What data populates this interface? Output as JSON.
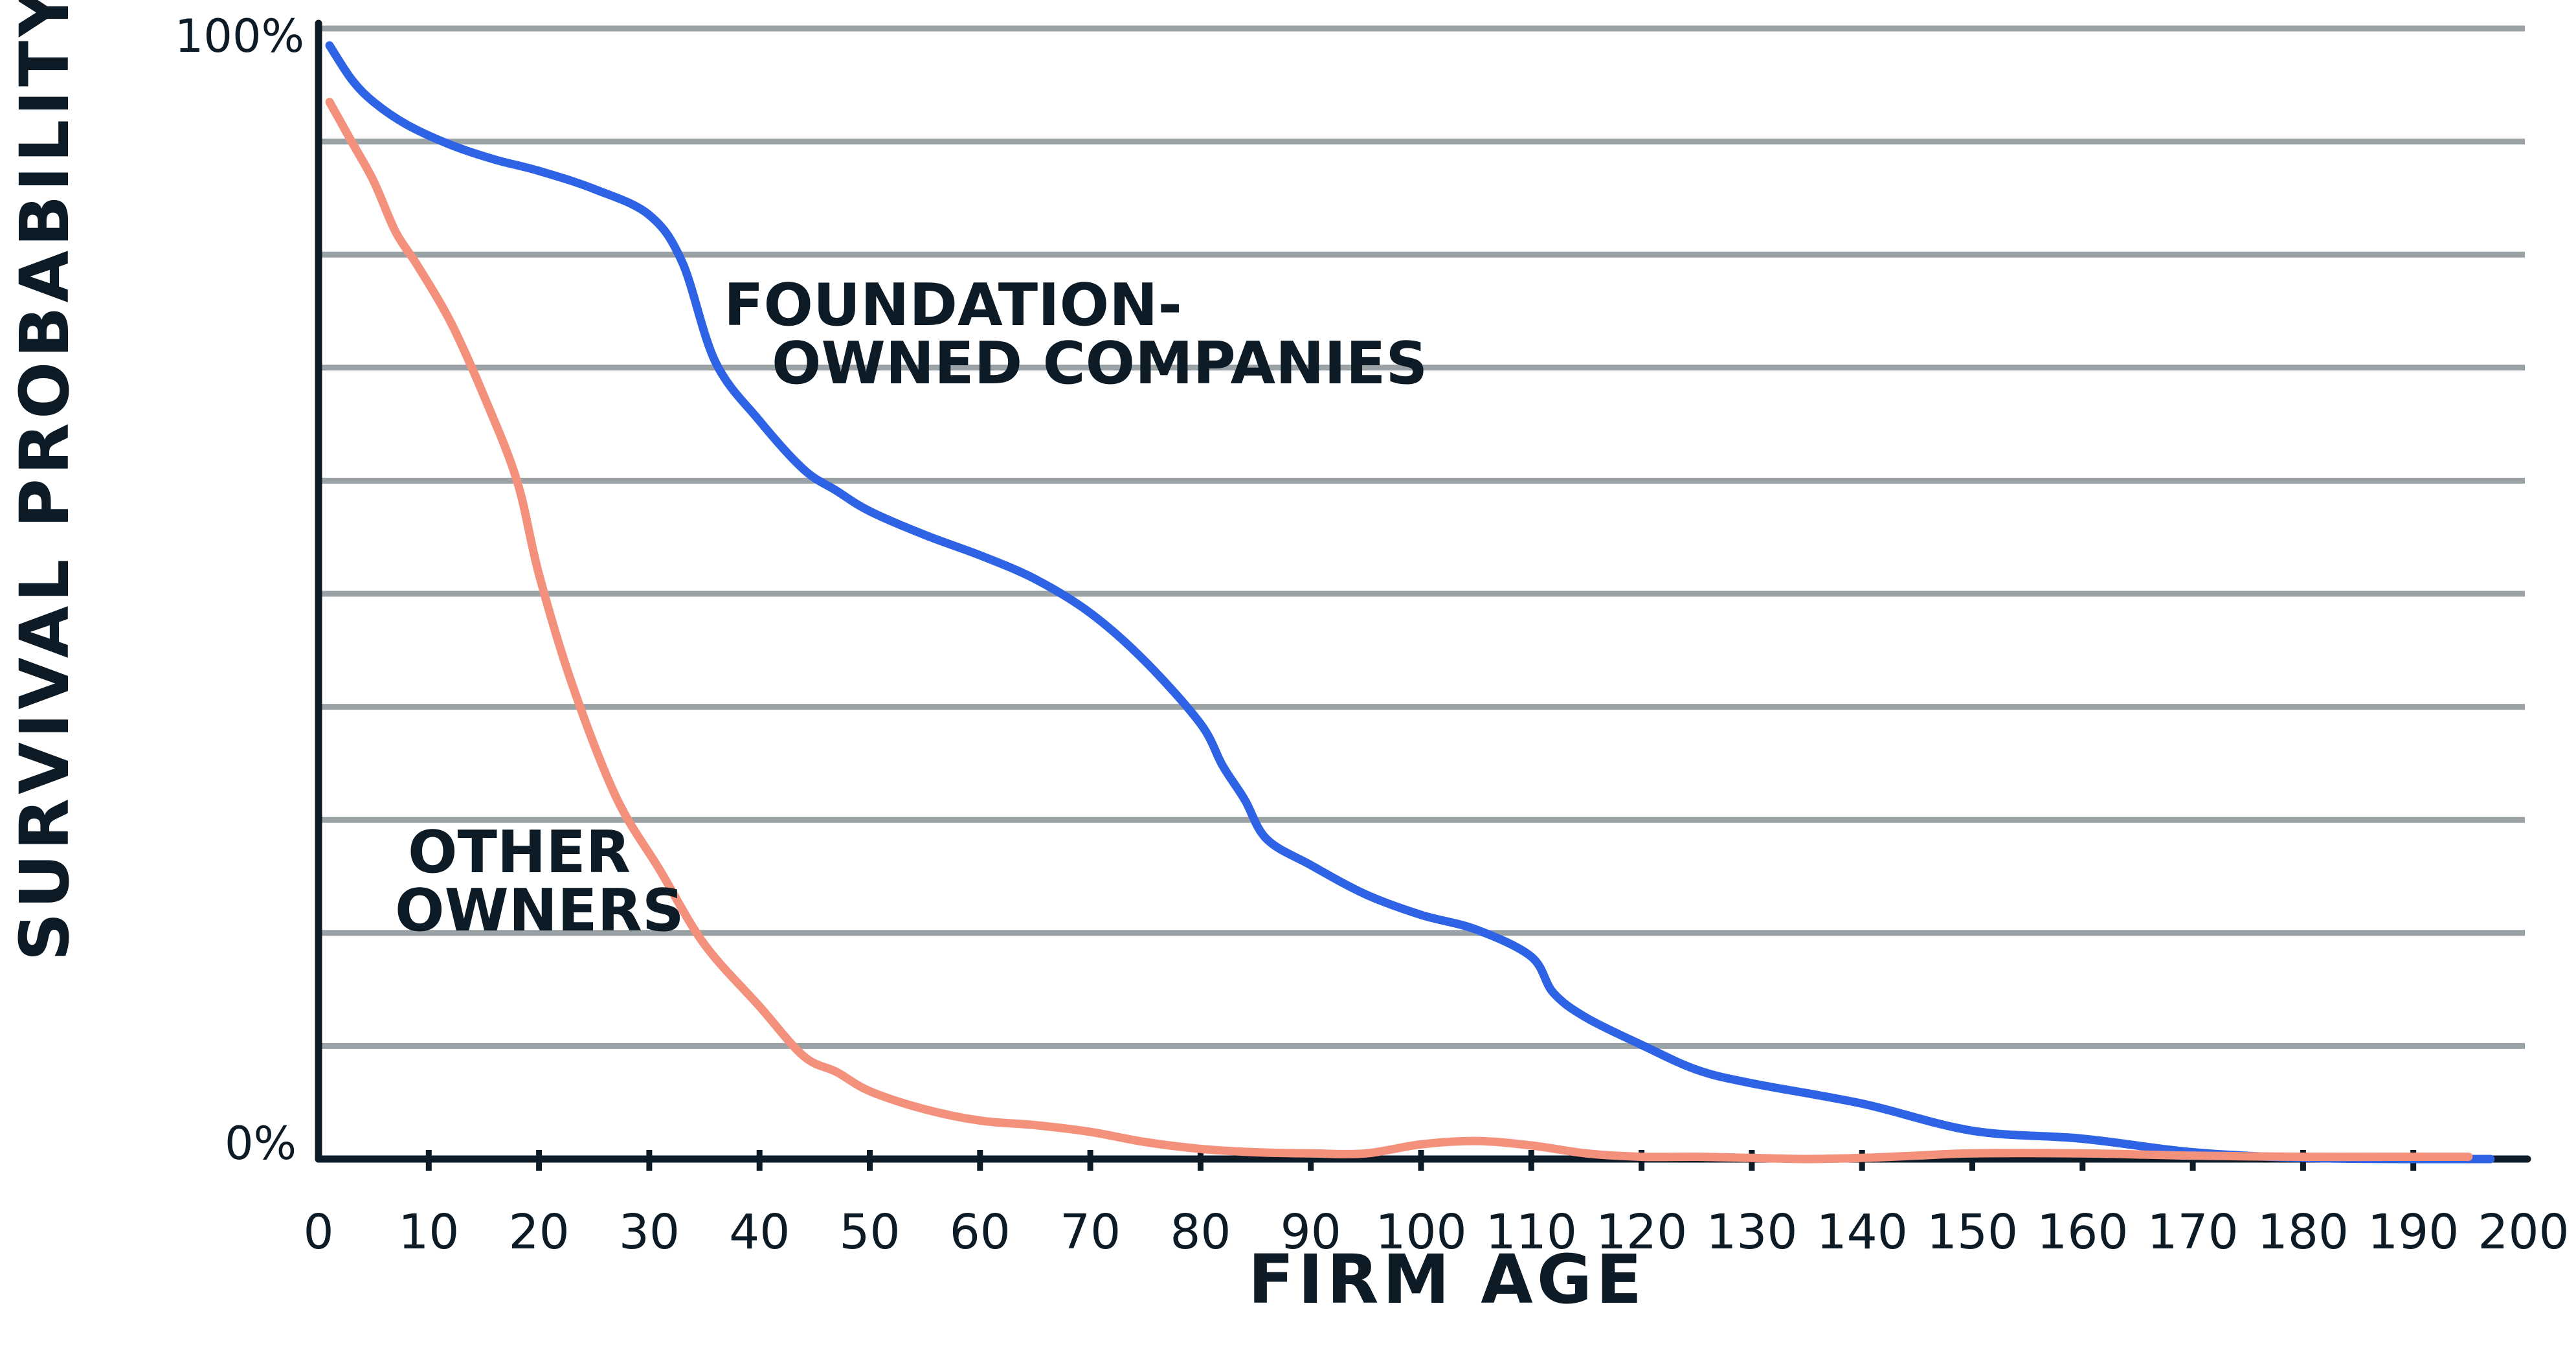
{
  "chart_data": {
    "type": "line",
    "title": "",
    "xlabel": "FIRM AGE",
    "ylabel": "SURVIVAL PROBABILITY",
    "xlim": [
      0,
      200
    ],
    "ylim": [
      0,
      100
    ],
    "x_ticks": [
      0,
      10,
      20,
      30,
      40,
      50,
      60,
      70,
      80,
      90,
      100,
      110,
      120,
      130,
      140,
      150,
      160,
      170,
      180,
      190,
      200
    ],
    "y_tick_labels": {
      "top": "100%",
      "bottom": "0%"
    },
    "grid": true,
    "grid_lines": 10,
    "legend": "none",
    "annotations": [
      {
        "series": "foundation",
        "lines": [
          "FOUNDATION-",
          "OWNED COMPANIES"
        ]
      },
      {
        "series": "other",
        "lines": [
          "OTHER",
          "OWNERS"
        ]
      }
    ],
    "series": [
      {
        "key": "foundation",
        "color": "#2f63e6",
        "x": [
          1,
          3,
          5,
          8,
          12,
          16,
          20,
          25,
          30,
          33,
          36,
          40,
          44,
          47,
          50,
          55,
          60,
          65,
          70,
          75,
          80,
          82,
          84,
          86,
          90,
          95,
          100,
          105,
          110,
          112,
          115,
          120,
          125,
          130,
          140,
          150,
          160,
          170,
          180,
          190,
          197
        ],
        "y": [
          98.5,
          95.5,
          93.5,
          91.5,
          89.7,
          88.4,
          87.4,
          85.8,
          83.5,
          79.3,
          70.5,
          65.3,
          61.0,
          59.1,
          57.3,
          55.2,
          53.4,
          51.3,
          48.3,
          44.0,
          38.5,
          34.8,
          31.8,
          28.3,
          26.0,
          23.4,
          21.6,
          20.3,
          17.9,
          14.7,
          12.5,
          10.1,
          7.9,
          6.7,
          4.9,
          2.5,
          1.8,
          0.6,
          0.1,
          0.0,
          0.0
        ]
      },
      {
        "key": "other",
        "color": "#f4917d",
        "x": [
          1,
          3,
          5,
          7,
          9,
          12,
          15,
          18,
          20,
          23,
          27,
          31,
          35,
          40,
          44,
          47,
          50,
          55,
          60,
          65,
          70,
          75,
          80,
          85,
          90,
          95,
          100,
          105,
          110,
          115,
          120,
          125,
          130,
          135,
          140,
          145,
          150,
          160,
          170,
          180,
          190,
          195
        ],
        "y": [
          93.5,
          90.0,
          86.5,
          82.0,
          79.0,
          74.0,
          67.5,
          60.0,
          51.7,
          42.0,
          32.0,
          25.5,
          19.0,
          13.5,
          9.1,
          7.7,
          6.0,
          4.4,
          3.4,
          3.0,
          2.4,
          1.5,
          0.9,
          0.6,
          0.5,
          0.5,
          1.3,
          1.6,
          1.2,
          0.5,
          0.2,
          0.2,
          0.1,
          0.0,
          0.1,
          0.3,
          0.5,
          0.5,
          0.3,
          0.2,
          0.2,
          0.2
        ]
      }
    ]
  }
}
